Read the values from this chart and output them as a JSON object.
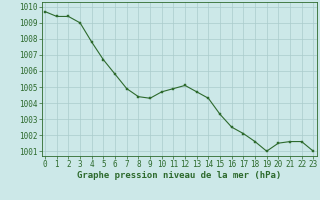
{
  "x": [
    0,
    1,
    2,
    3,
    4,
    5,
    6,
    7,
    8,
    9,
    10,
    11,
    12,
    13,
    14,
    15,
    16,
    17,
    18,
    19,
    20,
    21,
    22,
    23
  ],
  "y": [
    1009.7,
    1009.4,
    1009.4,
    1009.0,
    1007.8,
    1006.7,
    1005.8,
    1004.9,
    1004.4,
    1004.3,
    1004.7,
    1004.9,
    1005.1,
    1004.7,
    1004.3,
    1003.3,
    1002.5,
    1002.1,
    1001.6,
    1001.0,
    1001.5,
    1001.6,
    1001.6,
    1001.0
  ],
  "ylim_min": 1000.7,
  "ylim_max": 1010.3,
  "xlim_min": -0.3,
  "xlim_max": 23.3,
  "yticks": [
    1001,
    1002,
    1003,
    1004,
    1005,
    1006,
    1007,
    1008,
    1009,
    1010
  ],
  "xticks": [
    0,
    1,
    2,
    3,
    4,
    5,
    6,
    7,
    8,
    9,
    10,
    11,
    12,
    13,
    14,
    15,
    16,
    17,
    18,
    19,
    20,
    21,
    22,
    23
  ],
  "xlabel": "Graphe pression niveau de la mer (hPa)",
  "line_color": "#2d6a2d",
  "marker_color": "#2d6a2d",
  "bg_color": "#cce8e8",
  "grid_color": "#aacccc",
  "tick_label_color": "#2d6a2d",
  "xlabel_color": "#2d6a2d",
  "xlabel_fontsize": 6.5,
  "tick_fontsize": 5.5,
  "line_width": 0.8,
  "marker_size": 2.0
}
